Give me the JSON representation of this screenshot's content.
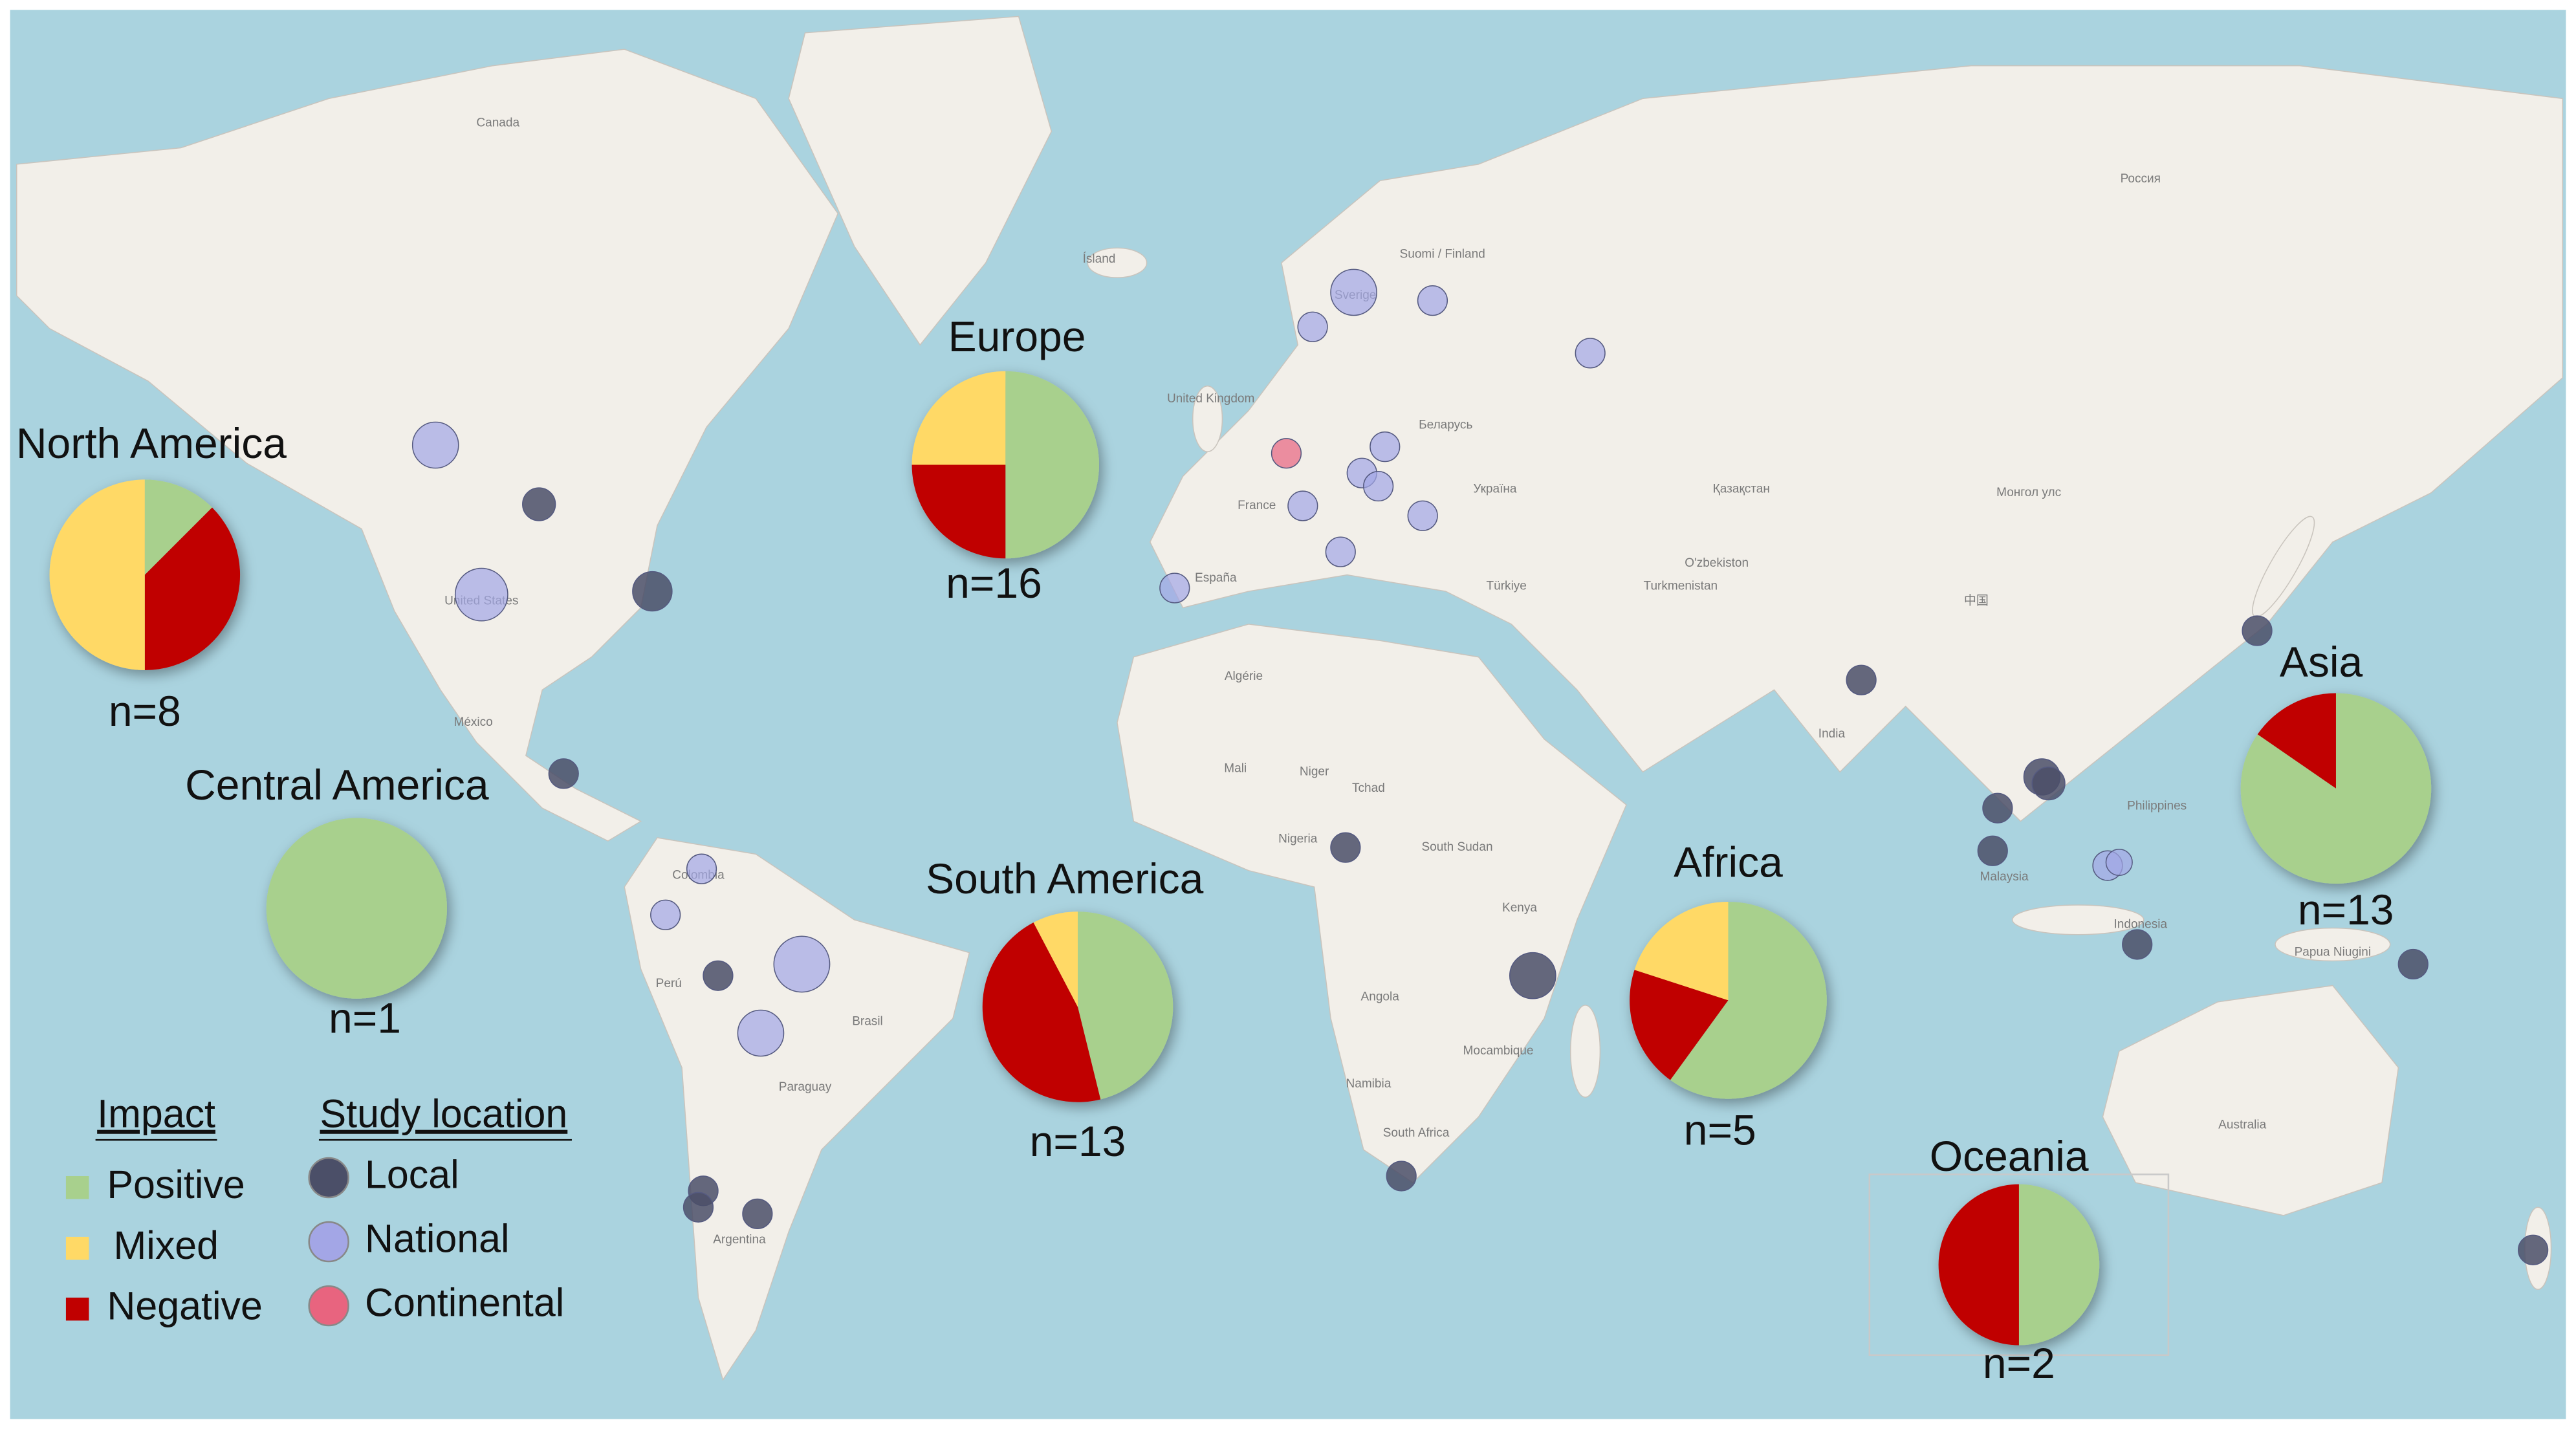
{
  "map": {
    "place_labels": [
      "Canada",
      "United States",
      "México",
      "Colombia",
      "Perú",
      "Brasil",
      "Paraguay",
      "Argentina",
      "Ísland",
      "United Kingdom",
      "France",
      "España",
      "Sverige",
      "Suomi / Finland",
      "Беларусь",
      "Україна",
      "Türkiye",
      "Қазақстан",
      "O'zbekiston",
      "Turkmenistan",
      "Монгол улс",
      "中国",
      "India",
      "Россия",
      "Philippines",
      "Malaysia",
      "Indonesia",
      "Papua Niugini",
      "Australia",
      "Algérie",
      "Mali",
      "Niger",
      "Tchad",
      "Nigeria",
      "South Sudan",
      "Kenya",
      "Angola",
      "Namibia",
      "South Africa",
      "Mocambique"
    ],
    "regions": [
      {
        "name": "North America",
        "n_label": "n=8",
        "values": [
          1,
          4,
          3
        ]
      },
      {
        "name": "Europe",
        "n_label": "n=16",
        "values": [
          8,
          4,
          4
        ]
      },
      {
        "name": "Central America",
        "n_label": "n=1",
        "values": [
          1,
          0,
          0
        ]
      },
      {
        "name": "South America",
        "n_label": "n=13",
        "values": [
          6,
          1,
          6
        ]
      },
      {
        "name": "Africa",
        "n_label": "n=5",
        "values": [
          3,
          1,
          1
        ]
      },
      {
        "name": "Asia",
        "n_label": "n=13",
        "values": [
          11,
          0,
          2
        ]
      },
      {
        "name": "Oceania",
        "n_label": "n=2",
        "values": [
          1,
          0,
          1
        ]
      }
    ]
  },
  "legend": {
    "impact_title": "Impact",
    "impact": [
      {
        "name": "Positive",
        "color": "#a8d08d"
      },
      {
        "name": "Mixed",
        "color": "#ffd966"
      },
      {
        "name": "Negative",
        "color": "#c00000"
      }
    ],
    "location_title": "Study location",
    "location": [
      {
        "name": "Local",
        "color": "#4b4f68"
      },
      {
        "name": "National",
        "color": "#a3a6e6"
      },
      {
        "name": "Continental",
        "color": "#e8647f"
      }
    ]
  }
}
